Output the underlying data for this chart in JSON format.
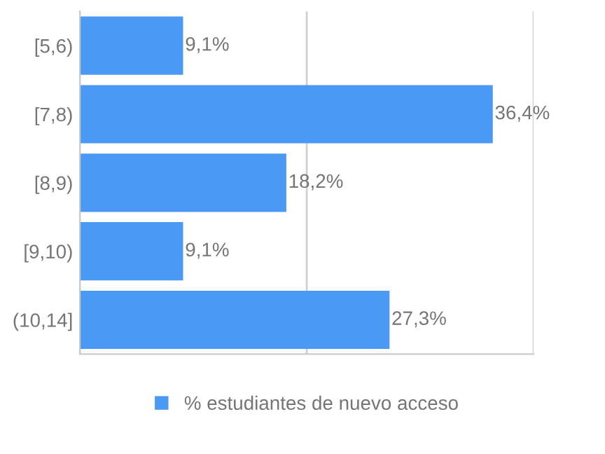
{
  "chart_data": {
    "type": "bar",
    "orientation": "horizontal",
    "categories": [
      "[5,6)",
      "[7,8)",
      "[8,9)",
      "[9,10)",
      "(10,14]"
    ],
    "series": [
      {
        "name": "% estudiantes de nuevo acceso",
        "color": "#4a9af5",
        "values": [
          9.1,
          36.4,
          18.2,
          9.1,
          27.3
        ],
        "value_labels": [
          "9,1%",
          "36,4%",
          "18,2%",
          "9,1%",
          "27,3%"
        ]
      }
    ],
    "xlim": [
      0,
      40
    ],
    "xticks": [
      {
        "value": 0,
        "label": null
      },
      {
        "value": 20,
        "label": null
      },
      {
        "value": 40,
        "label": null
      }
    ],
    "grid": "x",
    "legend": "bottom"
  }
}
